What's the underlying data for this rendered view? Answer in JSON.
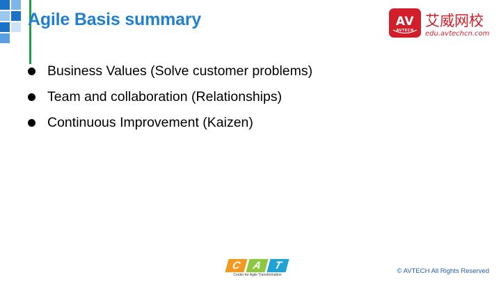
{
  "slide": {
    "title": "Agile Basis summary",
    "bullets": [
      "Business Values (Solve customer problems)",
      "Team and collaboration (Relationships)",
      "Continuous Improvement (Kaizen)"
    ],
    "copyright": "© AVTECH All Rights Reserved"
  },
  "brand_logo": {
    "badge_text": "AV",
    "badge_subtext": "AVTECH",
    "name_cn": "艾威网校",
    "url": "edu.avtechcn.com"
  },
  "cat_logo": {
    "letters": [
      "C",
      "A",
      "T"
    ],
    "tagline": "Center for Agile Transformation"
  },
  "colors": {
    "title": "#1f7fd0",
    "accent_line": "#1aa14a",
    "brand_red": "#d21d2a",
    "cat_c": "#f39a1e",
    "cat_a": "#8dc63f",
    "cat_t": "#1fa2d6",
    "deco_blue": "#1a73c8"
  },
  "icons": {
    "bullet": "bullet-dot-icon",
    "deco": "blue-squares-decoration"
  }
}
